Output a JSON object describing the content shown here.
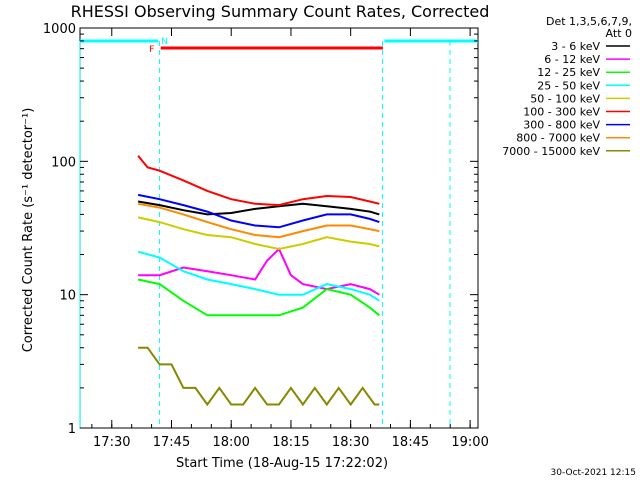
{
  "chart_data": {
    "type": "line",
    "title": "RHESSI Observing Summary Count Rates, Corrected",
    "xlabel": "Start Time (18-Aug-15 17:22:02)",
    "ylabel": "Corrected Count Rate (s⁻¹ detector⁻¹)",
    "y_scale": "log",
    "ylim": [
      1,
      1000
    ],
    "xlim_minutes": [
      17.367,
      19.033
    ],
    "x_ticks": [
      "17:30",
      "17:45",
      "18:00",
      "18:15",
      "18:30",
      "18:45",
      "19:00"
    ],
    "y_ticks": [
      "1",
      "10",
      "100",
      "1000"
    ],
    "legend_header": [
      "Det 1,3,5,6,7,9,",
      "Att 0"
    ],
    "footer_date": "30-Oct-2021 12:15",
    "annotations": {
      "night_label": "N",
      "flare_label": "F",
      "night_intervals_hours": [
        [
          17.367,
          17.695
        ],
        [
          18.641,
          19.033
        ]
      ],
      "flare_interval_hours": [
        17.705,
        18.635
      ],
      "data_gaps_hours": [
        17.3667,
        17.7,
        18.633,
        18.916
      ]
    },
    "series": [
      {
        "name": "3 - 6 keV",
        "color": "#000000",
        "x": [
          17.61,
          17.7,
          17.8,
          17.9,
          18.0,
          18.1,
          18.2,
          18.3,
          18.4,
          18.5,
          18.58,
          18.62
        ],
        "y": [
          50,
          47,
          43,
          40,
          41,
          44,
          46,
          48,
          46,
          44,
          42,
          40
        ]
      },
      {
        "name": "6 - 12 keV",
        "color": "#ff00ff",
        "x": [
          17.61,
          17.7,
          17.8,
          17.9,
          18.0,
          18.1,
          18.15,
          18.2,
          18.25,
          18.3,
          18.4,
          18.5,
          18.58,
          18.62
        ],
        "y": [
          14,
          14,
          16,
          15,
          14,
          13,
          18,
          22,
          14,
          12,
          11,
          12,
          11,
          10
        ]
      },
      {
        "name": "12 - 25 keV",
        "color": "#00ff00",
        "x": [
          17.61,
          17.7,
          17.8,
          17.9,
          18.0,
          18.1,
          18.2,
          18.3,
          18.4,
          18.5,
          18.58,
          18.62
        ],
        "y": [
          13,
          12,
          9,
          7,
          7,
          7,
          7,
          8,
          11,
          10,
          8,
          7
        ]
      },
      {
        "name": "25 - 50 keV",
        "color": "#00ffff",
        "x": [
          17.61,
          17.7,
          17.8,
          17.9,
          18.0,
          18.1,
          18.2,
          18.3,
          18.4,
          18.5,
          18.58,
          18.62
        ],
        "y": [
          21,
          19,
          15,
          13,
          12,
          11,
          10,
          10,
          12,
          11,
          10,
          9
        ]
      },
      {
        "name": "50 - 100 keV",
        "color": "#cccc00",
        "x": [
          17.61,
          17.7,
          17.8,
          17.9,
          18.0,
          18.1,
          18.2,
          18.3,
          18.4,
          18.5,
          18.58,
          18.62
        ],
        "y": [
          38,
          35,
          31,
          28,
          27,
          24,
          22,
          24,
          27,
          25,
          24,
          23
        ]
      },
      {
        "name": "100 - 300 keV",
        "color": "#ff0000",
        "x": [
          17.61,
          17.65,
          17.7,
          17.8,
          17.9,
          18.0,
          18.1,
          18.2,
          18.3,
          18.4,
          18.5,
          18.58,
          18.62
        ],
        "y": [
          110,
          90,
          85,
          72,
          60,
          52,
          48,
          47,
          52,
          55,
          54,
          50,
          48
        ]
      },
      {
        "name": "300 - 800 keV",
        "color": "#0000ff",
        "x": [
          17.61,
          17.7,
          17.8,
          17.9,
          18.0,
          18.1,
          18.2,
          18.3,
          18.4,
          18.5,
          18.58,
          18.62
        ],
        "y": [
          56,
          52,
          47,
          42,
          36,
          33,
          32,
          36,
          40,
          40,
          37,
          35
        ]
      },
      {
        "name": "800 - 7000 keV",
        "color": "#ff8800",
        "x": [
          17.61,
          17.7,
          17.8,
          17.9,
          18.0,
          18.1,
          18.2,
          18.3,
          18.4,
          18.5,
          18.58,
          18.62
        ],
        "y": [
          48,
          45,
          40,
          35,
          31,
          28,
          27,
          30,
          33,
          33,
          31,
          30
        ]
      },
      {
        "name": "7000 - 15000 keV",
        "color": "#888800",
        "x": [
          17.61,
          17.65,
          17.7,
          17.75,
          17.8,
          17.85,
          17.9,
          17.95,
          18.0,
          18.05,
          18.1,
          18.15,
          18.2,
          18.25,
          18.3,
          18.35,
          18.4,
          18.45,
          18.5,
          18.55,
          18.6,
          18.62
        ],
        "y": [
          4,
          4,
          3,
          3,
          2,
          2,
          1.5,
          2,
          1.5,
          1.5,
          2,
          1.5,
          1.5,
          2,
          1.5,
          2,
          1.5,
          2,
          1.5,
          2,
          1.5,
          1.5
        ]
      }
    ]
  }
}
